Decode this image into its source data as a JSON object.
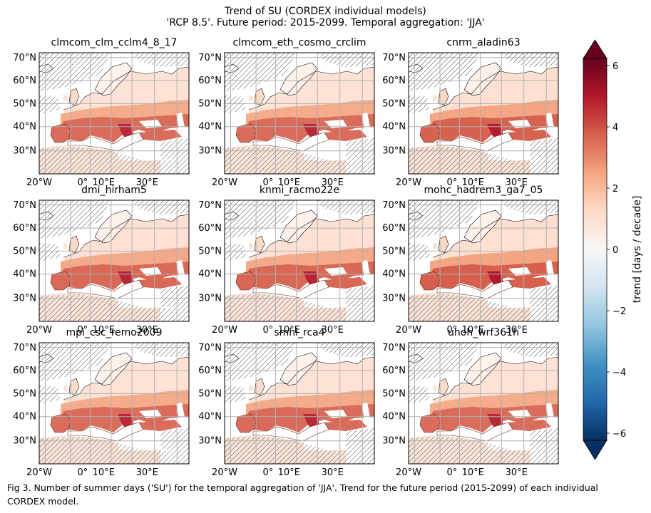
{
  "figure": {
    "title_line1": "Trend of SU (CORDEX individual models)",
    "title_line2": "'RCP 8.5'. Future period: 2015-2099. Temporal aggregation: 'JJA'",
    "caption": "Fig 3. Number of summer days ('SU') for the temporal aggregation of 'JJA'. Trend for the future period (2015-2099) of each individual CORDEX model."
  },
  "panels": [
    {
      "title": "clmcom_clm_cclm4_8_17",
      "intensity": 0.85
    },
    {
      "title": "clmcom_eth_cosmo_crclim",
      "intensity": 0.85
    },
    {
      "title": "cnrm_aladin63",
      "intensity": 1.15
    },
    {
      "title": "dmi_hirham5",
      "intensity": 0.95
    },
    {
      "title": "knmi_racmo22e",
      "intensity": 1.0
    },
    {
      "title": "mohc_hadrem3_ga7_05",
      "intensity": 1.25
    },
    {
      "title": "mpi_csc_remo2009",
      "intensity": 0.85
    },
    {
      "title": "smhi_rca4",
      "intensity": 0.9
    },
    {
      "title": "uhoh_wrf361h",
      "intensity": 0.85
    }
  ],
  "map_axes": {
    "lon_ticks": [
      "20°W",
      "0°",
      "10°E",
      "30°E"
    ],
    "lat_ticks": [
      "70°N",
      "60°N",
      "50°N",
      "40°N",
      "30°N"
    ]
  },
  "colorbar": {
    "label": "trend [days / decade]",
    "ticks": [
      "6",
      "4",
      "2",
      "0",
      "−2",
      "−4",
      "−6"
    ],
    "range": [
      -6,
      6
    ],
    "colormap": [
      "#053061",
      "#2166ac",
      "#4393c3",
      "#92c5de",
      "#d1e5f0",
      "#f7f7f7",
      "#fddbc7",
      "#f4a582",
      "#d6604d",
      "#b2182b",
      "#67001f"
    ]
  }
}
